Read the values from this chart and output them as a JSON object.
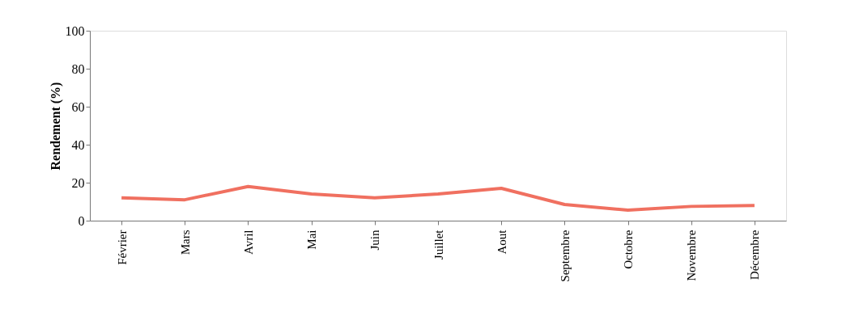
{
  "chart_data": {
    "type": "line",
    "ylabel": "Rendement (%)",
    "categories": [
      "Février",
      "Mars",
      "Avril",
      "Mai",
      "Juin",
      "Juillet",
      "Aout",
      "Septembre",
      "Octobre",
      "Novembre",
      "Décembre"
    ],
    "series": [
      {
        "color": "#f07060",
        "values": [
          12,
          11,
          18,
          14,
          12,
          14,
          17,
          8.5,
          5.5,
          7.5,
          8
        ]
      }
    ],
    "ylim": [
      0,
      100
    ],
    "yticks": [
      0,
      20,
      40,
      60,
      80,
      100
    ],
    "grid": false,
    "legend": false,
    "marker": "none",
    "line_style": "solid"
  }
}
